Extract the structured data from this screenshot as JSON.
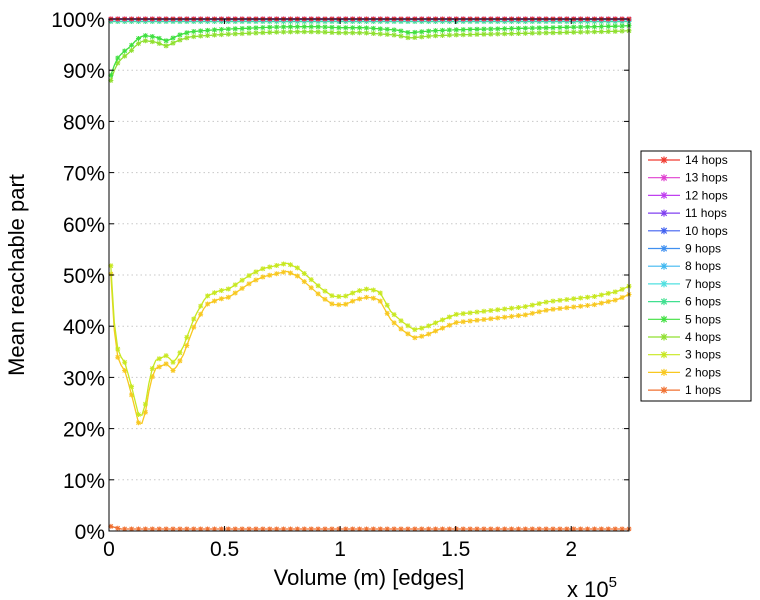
{
  "chart_data": {
    "type": "line",
    "title": "",
    "xlabel": "Volume (m) [edges]",
    "ylabel": "Mean reachable part",
    "x_multiplier_base": "x 10",
    "x_multiplier_exp": "5",
    "xlim": [
      0,
      2.25
    ],
    "ylim": [
      0,
      100
    ],
    "xticks": [
      0,
      0.5,
      1,
      1.5,
      2
    ],
    "xtick_labels": [
      "0",
      "0.5",
      "1",
      "1.5",
      "2"
    ],
    "yticks": [
      0,
      10,
      20,
      30,
      40,
      50,
      60,
      70,
      80,
      90,
      100
    ],
    "ytick_labels": [
      "0%",
      "10%",
      "20%",
      "30%",
      "40%",
      "50%",
      "60%",
      "70%",
      "80%",
      "90%",
      "100%"
    ],
    "grid": "horizontal dotted",
    "legend_position": "right",
    "x_units": "x 10^5 edges",
    "series": [
      {
        "name": "14 hops",
        "color": "#f03a30",
        "shape": "flat",
        "level": 100
      },
      {
        "name": "13 hops",
        "color": "#e040d0",
        "shape": "flat",
        "level": 100
      },
      {
        "name": "12 hops",
        "color": "#c040f0",
        "shape": "flat",
        "level": 100
      },
      {
        "name": "11 hops",
        "color": "#8040f0",
        "shape": "flat",
        "level": 100
      },
      {
        "name": "10 hops",
        "color": "#4060f0",
        "shape": "flat",
        "level": 100
      },
      {
        "name": "9 hops",
        "color": "#4090f0",
        "shape": "flat",
        "level": 100
      },
      {
        "name": "8 hops",
        "color": "#40b8f0",
        "shape": "flat",
        "level": 99.9
      },
      {
        "name": "7 hops",
        "color": "#50e0e0",
        "shape": "flat",
        "level": 99.8
      },
      {
        "name": "6 hops",
        "color": "#40e090",
        "shape": "flat",
        "level": 99.5
      },
      {
        "name": "5 hops",
        "color": "#40e040",
        "shape": "high",
        "level": 0.5
      },
      {
        "name": "4 hops",
        "color": "#90e030",
        "shape": "high",
        "level": -0.5
      },
      {
        "name": "3 hops",
        "color": "#c8e820",
        "shape": "mid",
        "level": 0.8
      },
      {
        "name": "2 hops",
        "color": "#f8c820",
        "shape": "mid",
        "level": -0.8
      },
      {
        "name": "1 hops",
        "color": "#f07030",
        "shape": "flat",
        "level": 0.4
      }
    ],
    "curves": {
      "high": {
        "x": [
          0.01,
          0.03,
          0.06,
          0.09,
          0.12,
          0.15,
          0.2,
          0.25,
          0.3,
          0.35,
          0.4,
          0.5,
          0.6,
          0.7,
          0.8,
          0.9,
          1.0,
          1.1,
          1.2,
          1.25,
          1.3,
          1.4,
          1.5,
          1.6,
          1.7,
          1.8,
          1.9,
          2.0,
          2.1,
          2.2,
          2.25
        ],
        "y": [
          88.5,
          91.5,
          93,
          94,
          95.5,
          96.3,
          96,
          95.2,
          96.3,
          97,
          97.2,
          97.5,
          97.7,
          97.9,
          98,
          98,
          97.8,
          97.8,
          97.5,
          97.3,
          96.8,
          97.2,
          97.4,
          97.5,
          97.6,
          97.7,
          97.8,
          97.9,
          98,
          98.1,
          98.2
        ]
      },
      "mid": {
        "x": [
          0.01,
          0.02,
          0.04,
          0.07,
          0.1,
          0.13,
          0.15,
          0.18,
          0.2,
          0.25,
          0.28,
          0.32,
          0.37,
          0.42,
          0.47,
          0.52,
          0.57,
          0.62,
          0.67,
          0.72,
          0.77,
          0.82,
          0.87,
          0.92,
          0.97,
          1.02,
          1.07,
          1.12,
          1.17,
          1.22,
          1.27,
          1.32,
          1.37,
          1.42,
          1.5,
          1.6,
          1.7,
          1.8,
          1.9,
          2.0,
          2.1,
          2.2,
          2.25
        ],
        "y": [
          51,
          41,
          34,
          32,
          27,
          21.5,
          22,
          30,
          32.5,
          33.5,
          32,
          35,
          41,
          45,
          46,
          46.5,
          48,
          49.5,
          50.5,
          51,
          51.5,
          50.5,
          48.5,
          46.5,
          45,
          45,
          46,
          46.5,
          46,
          42,
          40,
          38.5,
          39,
          40,
          41.5,
          42,
          42.5,
          43,
          44,
          44.5,
          45,
          46,
          47
        ]
      }
    }
  }
}
